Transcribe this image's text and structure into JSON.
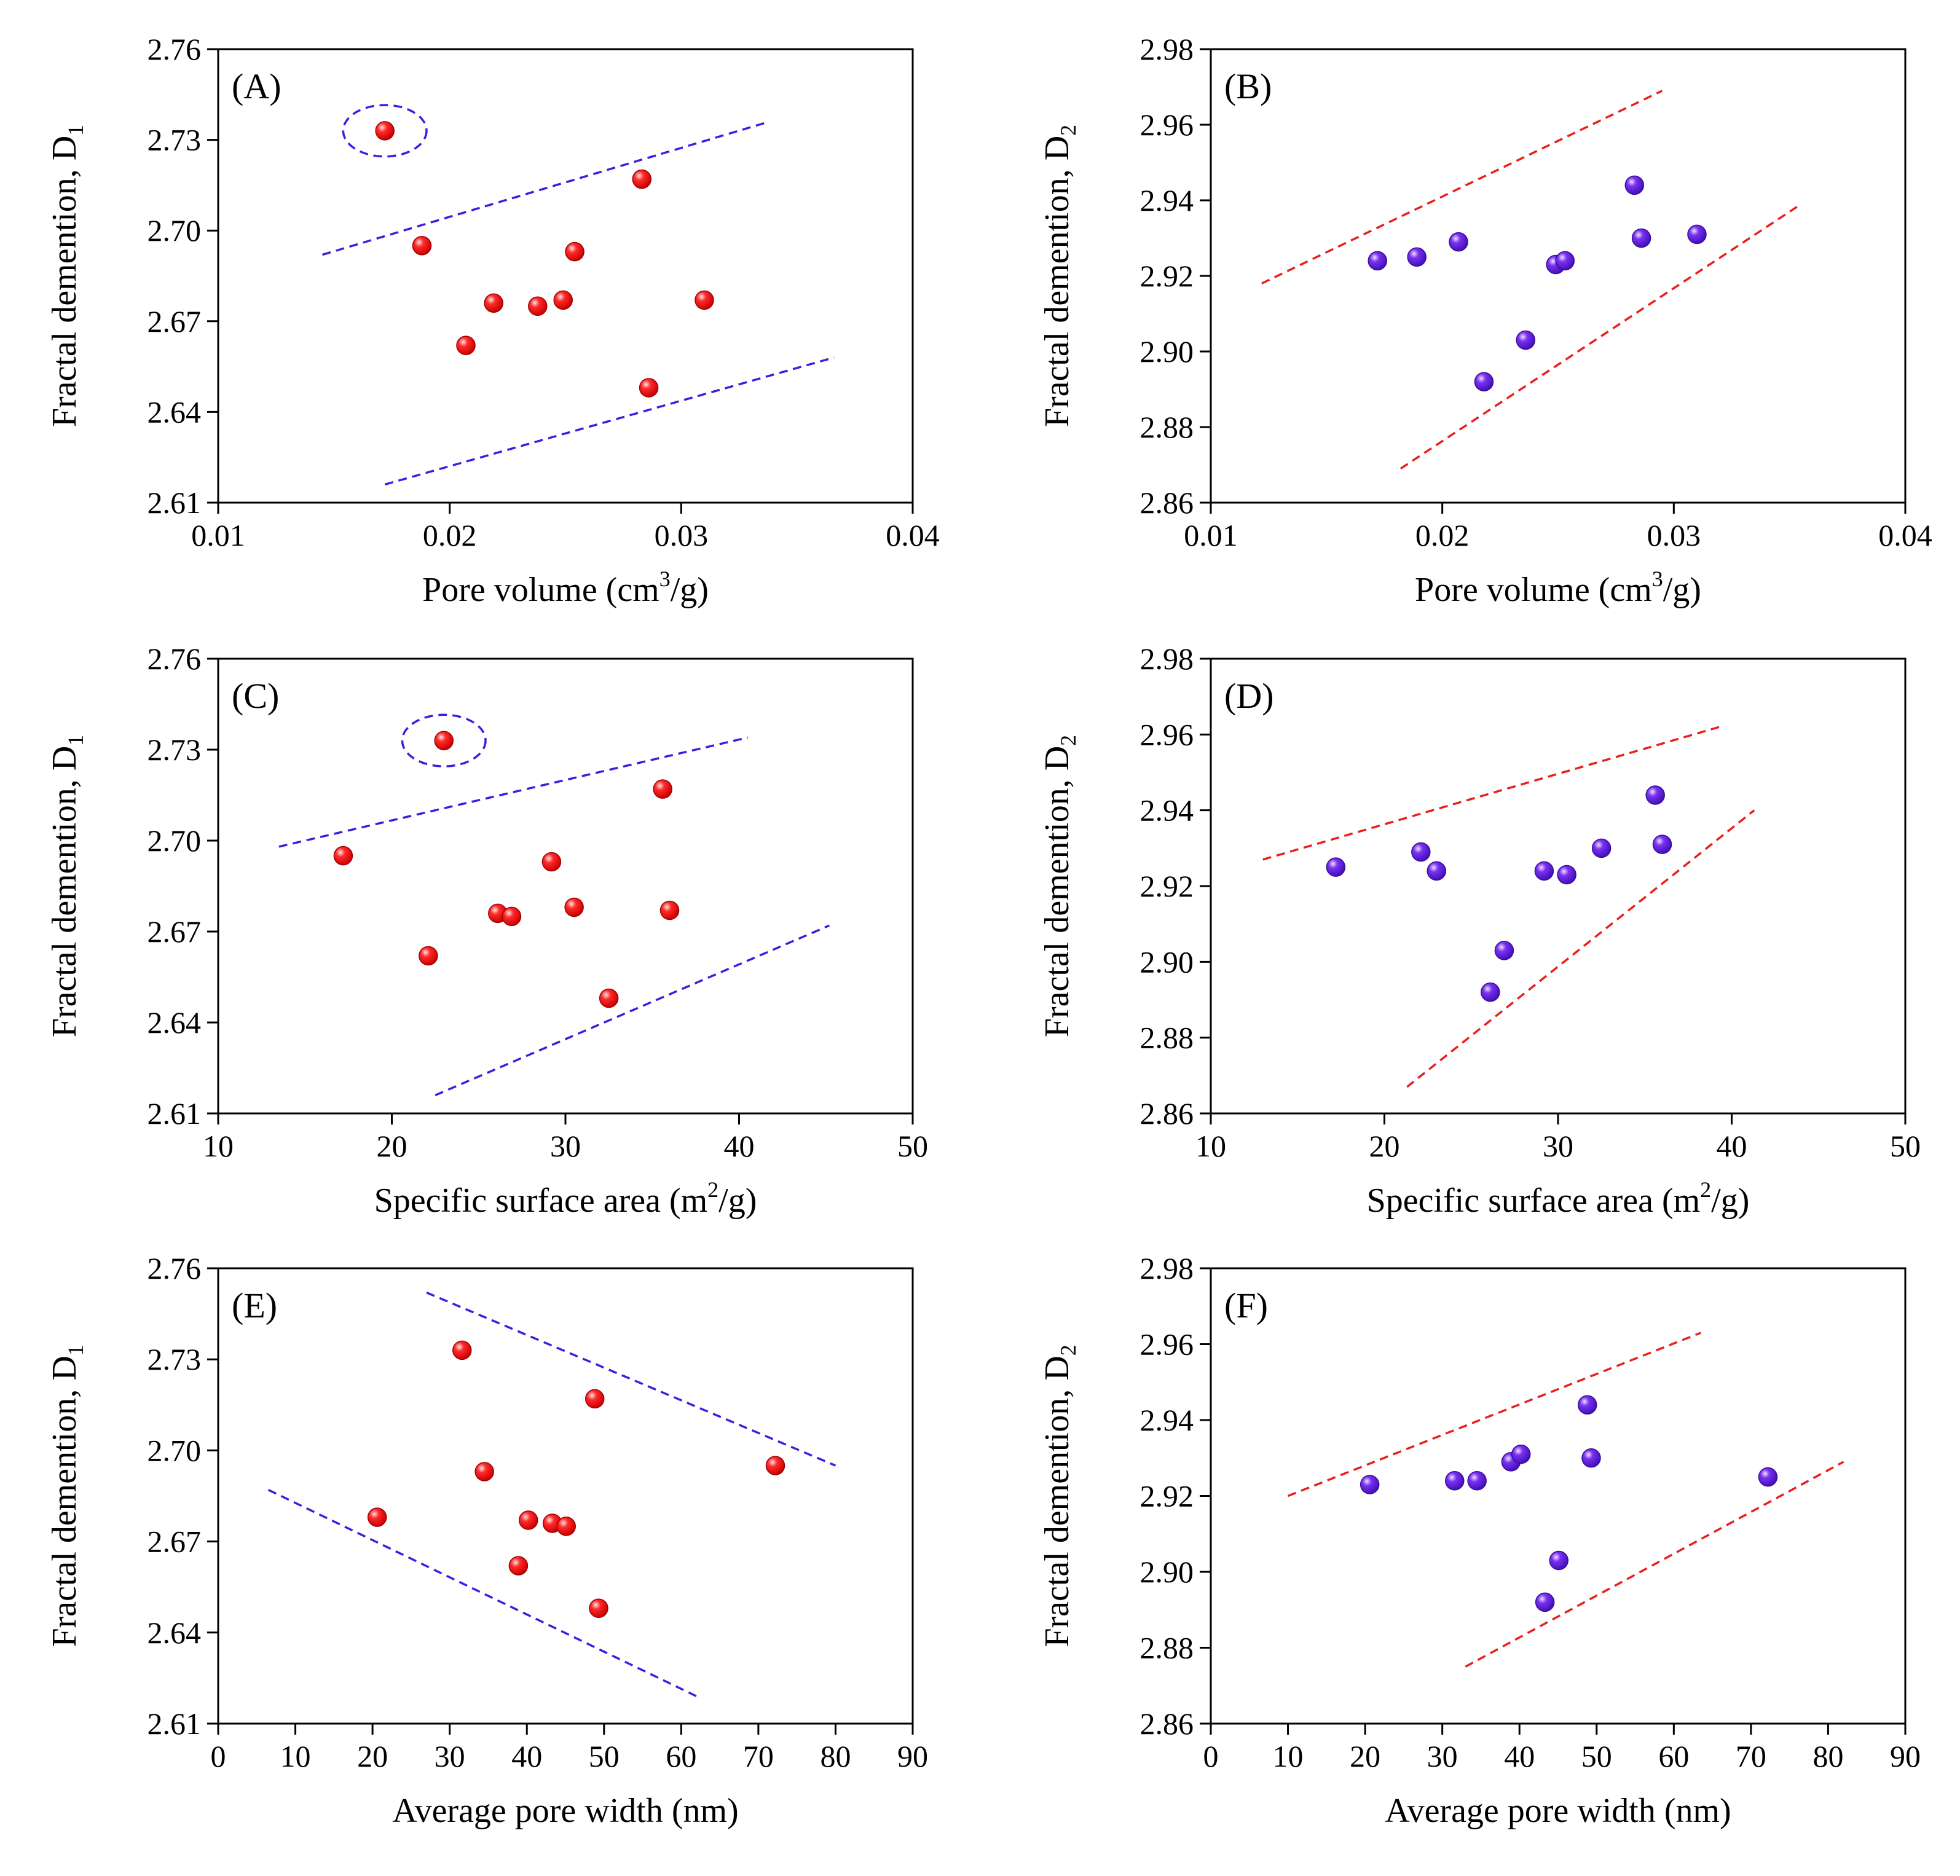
{
  "colors": {
    "red_marker": "#ff1a1a",
    "blue_marker": "#6a22e0",
    "blue_dash": "#3a1fe0",
    "red_dash": "#e8201c"
  },
  "chart_data": [
    {
      "panel": "(A)",
      "type": "scatter",
      "xlabel_main": "Pore volume (cm",
      "xlabel_sup": "3",
      "xlabel_tail": "/g)",
      "ylabel_main": "Fractal demention, D",
      "ylabel_sub": "1",
      "xlim": [
        0.01,
        0.04
      ],
      "ylim": [
        2.61,
        2.76
      ],
      "xticks": [
        "0.01",
        "0.02",
        "0.03",
        "0.04"
      ],
      "yticks": [
        "2.61",
        "2.64",
        "2.67",
        "2.70",
        "2.73",
        "2.76"
      ],
      "marker_color": "red",
      "line_color": "blue",
      "points": [
        [
          0.0172,
          2.733
        ],
        [
          0.0188,
          2.695
        ],
        [
          0.0207,
          2.662
        ],
        [
          0.0219,
          2.676
        ],
        [
          0.0238,
          2.675
        ],
        [
          0.0249,
          2.677
        ],
        [
          0.0254,
          2.693
        ],
        [
          0.0283,
          2.717
        ],
        [
          0.0286,
          2.648
        ],
        [
          0.031,
          2.677
        ]
      ],
      "guide_lines": [
        [
          [
            0.0145,
            2.692
          ],
          [
            0.0338,
            2.736
          ]
        ],
        [
          [
            0.0172,
            2.616
          ],
          [
            0.0366,
            2.658
          ]
        ]
      ],
      "ellipse": {
        "cx": 0.0172,
        "cy": 2.733,
        "rx": 0.0018,
        "ry": 0.0085
      }
    },
    {
      "panel": "(B)",
      "type": "scatter",
      "xlabel_main": "Pore volume (cm",
      "xlabel_sup": "3",
      "xlabel_tail": "/g)",
      "ylabel_main": "Fractal demention, D",
      "ylabel_sub": "2",
      "xlim": [
        0.01,
        0.04
      ],
      "ylim": [
        2.86,
        2.98
      ],
      "xticks": [
        "0.01",
        "0.02",
        "0.03",
        "0.04"
      ],
      "yticks": [
        "2.86",
        "2.88",
        "2.90",
        "2.92",
        "2.94",
        "2.96",
        "2.98"
      ],
      "marker_color": "blue",
      "line_color": "red",
      "points": [
        [
          0.0172,
          2.924
        ],
        [
          0.0189,
          2.925
        ],
        [
          0.0207,
          2.929
        ],
        [
          0.0218,
          2.892
        ],
        [
          0.0236,
          2.903
        ],
        [
          0.0249,
          2.923
        ],
        [
          0.0253,
          2.924
        ],
        [
          0.0283,
          2.944
        ],
        [
          0.0286,
          2.93
        ],
        [
          0.031,
          2.931
        ]
      ],
      "guide_lines": [
        [
          [
            0.0122,
            2.918
          ],
          [
            0.0295,
            2.969
          ]
        ],
        [
          [
            0.0182,
            2.869
          ],
          [
            0.0355,
            2.939
          ]
        ]
      ]
    },
    {
      "panel": "(C)",
      "type": "scatter",
      "xlabel_main": "Specific surface area (m",
      "xlabel_sup": "2",
      "xlabel_tail": "/g)",
      "ylabel_main": "Fractal demention, D",
      "ylabel_sub": "1",
      "xlim": [
        10,
        50
      ],
      "ylim": [
        2.61,
        2.76
      ],
      "xticks": [
        "10",
        "20",
        "30",
        "40",
        "50"
      ],
      "yticks": [
        "2.61",
        "2.64",
        "2.67",
        "2.70",
        "2.73",
        "2.76"
      ],
      "marker_color": "red",
      "line_color": "blue",
      "points": [
        [
          17.2,
          2.695
        ],
        [
          22.1,
          2.662
        ],
        [
          23.0,
          2.733
        ],
        [
          26.1,
          2.676
        ],
        [
          26.9,
          2.675
        ],
        [
          29.2,
          2.693
        ],
        [
          30.5,
          2.678
        ],
        [
          32.5,
          2.648
        ],
        [
          35.6,
          2.717
        ],
        [
          36.0,
          2.677
        ]
      ],
      "guide_lines": [
        [
          [
            13.5,
            2.698
          ],
          [
            40.5,
            2.734
          ]
        ],
        [
          [
            22.5,
            2.616
          ],
          [
            45.2,
            2.672
          ]
        ]
      ],
      "ellipse": {
        "cx": 23.0,
        "cy": 2.733,
        "rx": 2.4,
        "ry": 0.0085
      }
    },
    {
      "panel": "(D)",
      "type": "scatter",
      "xlabel_main": "Specific surface area (m",
      "xlabel_sup": "2",
      "xlabel_tail": "/g)",
      "ylabel_main": "Fractal demention, D",
      "ylabel_sub": "2",
      "xlim": [
        10,
        50
      ],
      "ylim": [
        2.86,
        2.98
      ],
      "xticks": [
        "10",
        "20",
        "30",
        "40",
        "50"
      ],
      "yticks": [
        "2.86",
        "2.88",
        "2.90",
        "2.92",
        "2.94",
        "2.96",
        "2.98"
      ],
      "marker_color": "blue",
      "line_color": "red",
      "points": [
        [
          17.2,
          2.925
        ],
        [
          22.1,
          2.929
        ],
        [
          23.0,
          2.924
        ],
        [
          26.1,
          2.892
        ],
        [
          26.9,
          2.903
        ],
        [
          29.2,
          2.924
        ],
        [
          30.5,
          2.923
        ],
        [
          32.5,
          2.93
        ],
        [
          35.6,
          2.944
        ],
        [
          36.0,
          2.931
        ]
      ],
      "guide_lines": [
        [
          [
            13.0,
            2.927
          ],
          [
            39.3,
            2.962
          ]
        ],
        [
          [
            21.3,
            2.867
          ],
          [
            41.3,
            2.94
          ]
        ]
      ]
    },
    {
      "panel": "(E)",
      "type": "scatter",
      "xlabel_main": "Average pore width (nm)",
      "xlabel_sup": "",
      "xlabel_tail": "",
      "ylabel_main": "Fractal demention, D",
      "ylabel_sub": "1",
      "xlim": [
        0,
        90
      ],
      "ylim": [
        2.61,
        2.76
      ],
      "xticks": [
        "0",
        "10",
        "20",
        "30",
        "40",
        "50",
        "60",
        "70",
        "80",
        "90"
      ],
      "yticks": [
        "2.61",
        "2.64",
        "2.67",
        "2.70",
        "2.73",
        "2.76"
      ],
      "marker_color": "red",
      "line_color": "blue",
      "points": [
        [
          20.6,
          2.678
        ],
        [
          31.6,
          2.733
        ],
        [
          34.5,
          2.693
        ],
        [
          38.9,
          2.662
        ],
        [
          40.2,
          2.677
        ],
        [
          43.3,
          2.676
        ],
        [
          45.1,
          2.675
        ],
        [
          48.8,
          2.717
        ],
        [
          49.3,
          2.648
        ],
        [
          72.2,
          2.695
        ]
      ],
      "guide_lines": [
        [
          [
            27.0,
            2.752
          ],
          [
            80.0,
            2.695
          ]
        ],
        [
          [
            6.5,
            2.687
          ],
          [
            62.0,
            2.619
          ]
        ]
      ]
    },
    {
      "panel": "(F)",
      "type": "scatter",
      "xlabel_main": "Average pore width (nm)",
      "xlabel_sup": "",
      "xlabel_tail": "",
      "ylabel_main": "Fractal demention, D",
      "ylabel_sub": "2",
      "xlim": [
        0,
        90
      ],
      "ylim": [
        2.86,
        2.98
      ],
      "xticks": [
        "0",
        "10",
        "20",
        "30",
        "40",
        "50",
        "60",
        "70",
        "80",
        "90"
      ],
      "yticks": [
        "2.86",
        "2.88",
        "2.90",
        "2.92",
        "2.94",
        "2.96",
        "2.98"
      ],
      "marker_color": "blue",
      "line_color": "red",
      "points": [
        [
          20.6,
          2.923
        ],
        [
          31.6,
          2.924
        ],
        [
          34.5,
          2.924
        ],
        [
          38.9,
          2.929
        ],
        [
          40.2,
          2.931
        ],
        [
          43.3,
          2.892
        ],
        [
          45.1,
          2.903
        ],
        [
          48.8,
          2.944
        ],
        [
          49.3,
          2.93
        ],
        [
          72.2,
          2.925
        ]
      ],
      "guide_lines": [
        [
          [
            10.0,
            2.92
          ],
          [
            63.5,
            2.963
          ]
        ],
        [
          [
            33.0,
            2.875
          ],
          [
            82.0,
            2.929
          ]
        ]
      ]
    }
  ]
}
